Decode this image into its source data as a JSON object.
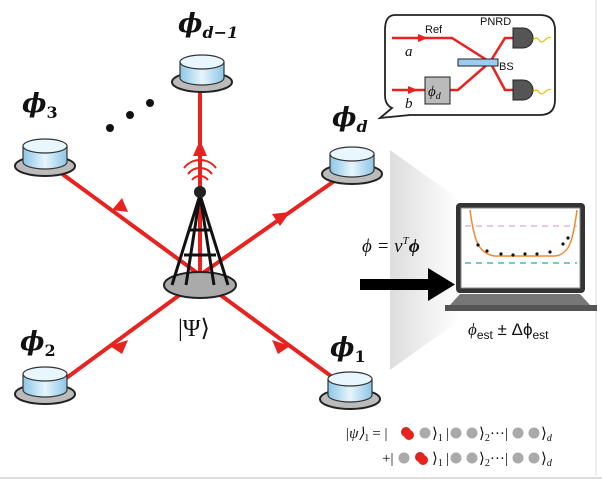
{
  "nodes": {
    "phi_d_minus_1": "ϕ",
    "phi_d_minus_1_sub": "d−1",
    "phi_3": "ϕ",
    "phi_3_sub": "3",
    "phi_d": "ϕ",
    "phi_d_sub": "d",
    "phi_2": "ϕ",
    "phi_2_sub": "2",
    "phi_1": "ϕ",
    "phi_1_sub": "1"
  },
  "source_state": "|Ψ⟩",
  "inset": {
    "ref_label": "Ref",
    "pnrd_label": "PNRD",
    "bs_label": "BS",
    "port_a": "a",
    "port_b": "b",
    "phase_box": "ϕ",
    "phase_box_sub": "d"
  },
  "estimator": {
    "equation": "ϕ = ν",
    "equation_sup": "T",
    "equation_bold": "ϕ",
    "result_phi": "ϕ",
    "result_sub": "est",
    "result_pm": " ± Δϕ",
    "result_sub2": "est"
  },
  "state_equation": {
    "line1_lhs": "|ψ⟩",
    "line1_lhs_sub": "1",
    "line1_rhs": "= |",
    "line2_prefix": "+|",
    "ket_end_1": "⟩",
    "sub_1": "1",
    "sub_2": "2",
    "sub_d": "d",
    "ellipsis": "···"
  },
  "colors": {
    "beam": "#e8231f",
    "node": "#bfe3f5",
    "curve": "#f08a30",
    "dash_top": "#d9a6d9",
    "dash_bottom": "#2aa79b"
  }
}
